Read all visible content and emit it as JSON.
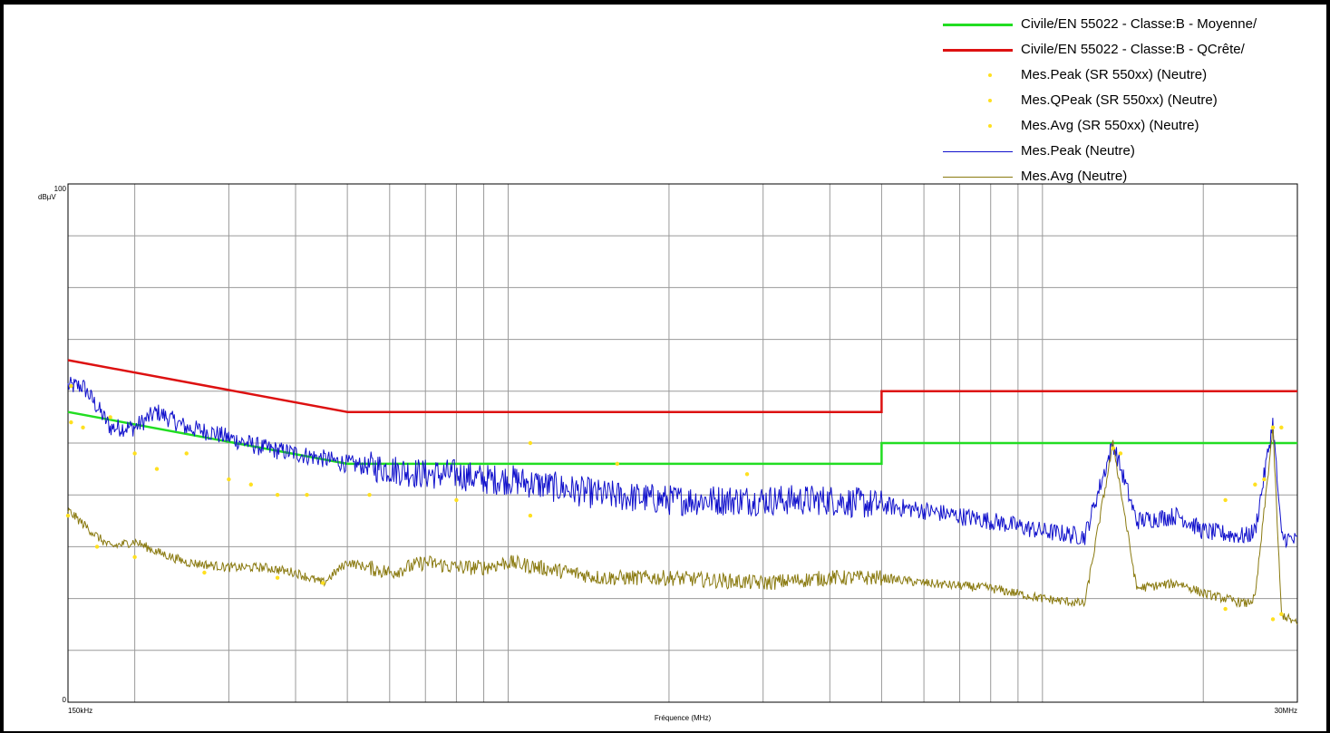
{
  "chart_data": {
    "type": "line",
    "ylabel": "dBµV",
    "xlabel": "Fréquence (MHz)",
    "x_scale": "log",
    "xlim": [
      0.15,
      30
    ],
    "ylim": [
      0,
      100
    ],
    "x_tick_labels": [
      "150kHz",
      "30MHz"
    ],
    "y_tick_labels": [
      "100",
      "0"
    ],
    "grid": true,
    "legend_position": "top-right",
    "legend": [
      {
        "label": "Civile/EN 55022 - Classe:B - Moyenne/",
        "color": "#22dd22",
        "kind": "line"
      },
      {
        "label": "Civile/EN 55022 - Classe:B - QCrête/",
        "color": "#dd1111",
        "kind": "line"
      },
      {
        "label": "Mes.Peak (SR 550xx) (Neutre)",
        "color": "#ffe020",
        "kind": "dot"
      },
      {
        "label": "Mes.QPeak (SR 550xx) (Neutre)",
        "color": "#ffe020",
        "kind": "dot"
      },
      {
        "label": "Mes.Avg (SR 550xx) (Neutre)",
        "color": "#ffe020",
        "kind": "dot"
      },
      {
        "label": "Mes.Peak (Neutre)",
        "color": "#1111cc",
        "kind": "line"
      },
      {
        "label": "Mes.Avg (Neutre)",
        "color": "#8a7a10",
        "kind": "line"
      }
    ],
    "series": [
      {
        "name": "Civile/EN 55022 - Classe:B - QCrête/",
        "color": "#dd1111",
        "x": [
          0.15,
          0.5,
          0.5,
          5,
          5,
          30
        ],
        "y": [
          66,
          56,
          56,
          56,
          60,
          60
        ]
      },
      {
        "name": "Civile/EN 55022 - Classe:B - Moyenne/",
        "color": "#22dd22",
        "x": [
          0.15,
          0.5,
          0.5,
          5,
          5,
          30
        ],
        "y": [
          56,
          46,
          46,
          46,
          50,
          50
        ]
      },
      {
        "name": "Mes.Peak (Neutre)",
        "color": "#1111cc",
        "x": [
          0.15,
          0.16,
          0.17,
          0.18,
          0.2,
          0.22,
          0.25,
          0.28,
          0.3,
          0.35,
          0.4,
          0.45,
          0.5,
          0.6,
          0.7,
          0.8,
          0.9,
          1.0,
          1.5,
          2,
          3,
          4,
          5,
          6,
          8,
          10,
          12,
          13.56,
          15,
          18,
          20,
          24,
          25,
          27,
          28,
          30
        ],
        "y": [
          61,
          61,
          57,
          53,
          53,
          56,
          53,
          52,
          51,
          49,
          48,
          47,
          46,
          45,
          44,
          44,
          43,
          43,
          40,
          39,
          39,
          39,
          38,
          37,
          35,
          33,
          32,
          50,
          35,
          36,
          33,
          32,
          33,
          54,
          32,
          31
        ],
        "noise_amplitude_dB": 3
      },
      {
        "name": "Mes.Avg (Neutre)",
        "color": "#8a7a10",
        "x": [
          0.15,
          0.17,
          0.18,
          0.2,
          0.22,
          0.25,
          0.3,
          0.35,
          0.4,
          0.45,
          0.5,
          0.6,
          0.7,
          0.8,
          0.9,
          1.0,
          1.5,
          2,
          3,
          4,
          5,
          6,
          8,
          10,
          12,
          13.56,
          15,
          18,
          20,
          24,
          25,
          27,
          28,
          30
        ],
        "y": [
          37,
          32,
          30,
          31,
          29,
          27,
          26,
          26,
          25,
          23,
          27,
          25,
          27,
          26,
          26,
          27,
          24,
          24,
          23,
          24,
          24,
          23,
          22,
          20,
          19,
          50,
          22,
          23,
          21,
          19,
          20,
          53,
          17,
          15
        ],
        "noise_amplitude_dB": 1.5
      },
      {
        "name": "Mes.Peak (SR 550xx) (Neutre)",
        "color": "#ffe020",
        "marker": "dot",
        "x": [
          0.152,
          0.18,
          0.25,
          0.33,
          0.37,
          1.1,
          1.6,
          2.8,
          14,
          22,
          25,
          26,
          28
        ],
        "y": [
          61,
          55,
          48,
          42,
          40,
          50,
          46,
          44,
          48,
          39,
          42,
          43,
          53
        ]
      },
      {
        "name": "Mes.QPeak (SR 550xx) (Neutre)",
        "color": "#ffe020",
        "marker": "dot",
        "x": [
          0.152,
          0.16,
          0.2,
          0.22,
          0.3,
          0.42,
          0.55,
          0.8,
          1.1,
          13.56,
          27
        ],
        "y": [
          54,
          53,
          48,
          45,
          43,
          40,
          40,
          39,
          36,
          49,
          53
        ]
      },
      {
        "name": "Mes.Avg (SR 550xx) (Neutre)",
        "color": "#ffe020",
        "marker": "dot",
        "x": [
          0.15,
          0.17,
          0.2,
          0.27,
          0.37,
          0.45,
          22,
          27,
          28
        ],
        "y": [
          36,
          30,
          28,
          25,
          24,
          23,
          18,
          16,
          17
        ]
      }
    ]
  }
}
